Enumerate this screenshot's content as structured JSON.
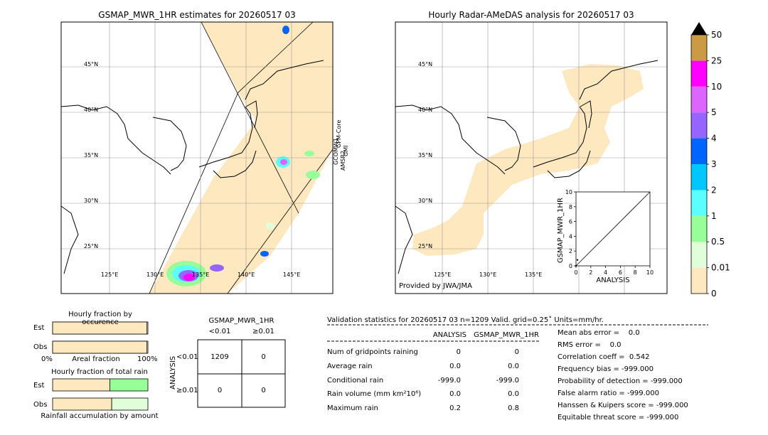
{
  "left_map": {
    "title": "GSMAP_MWR_1HR estimates for 20260517 03",
    "lat_labels": [
      "45°N",
      "40°N",
      "35°N",
      "30°N",
      "25°N"
    ],
    "lon_labels": [
      "125°E",
      "130°E",
      "135°E",
      "140°E",
      "145°E"
    ],
    "swath_labels": [
      "GCOMW1",
      "AMSR2",
      "GPM-Core",
      "GMI"
    ]
  },
  "right_map": {
    "title": "Hourly Radar-AMeDAS analysis for 20260517 03",
    "lat_labels": [
      "45°N",
      "40°N",
      "35°N",
      "30°N",
      "25°N"
    ],
    "lon_labels": [
      "125°E",
      "130°E",
      "135°E"
    ],
    "credit": "Provided by JWA/JMA"
  },
  "colorbar": {
    "levels": [
      "0",
      "0.01",
      "0.5",
      "1",
      "2",
      "3",
      "4",
      "5",
      "10",
      "25",
      "50"
    ],
    "colors": [
      "#fee8c0",
      "#e0fed8",
      "#98fe98",
      "#5afeff",
      "#00c8ff",
      "#0064ff",
      "#9664ff",
      "#dc64ff",
      "#ff00ff",
      "#cc9944"
    ],
    "extend_color": "#000000"
  },
  "chart_data": [
    {
      "type": "scatter",
      "title": "",
      "xlabel": "ANALYSIS",
      "ylabel": "GSMAP_MWR_1HR",
      "xlim": [
        0,
        10
      ],
      "ylim": [
        0,
        10
      ],
      "xticks": [
        "0",
        "2",
        "4",
        "6",
        "8",
        "10"
      ],
      "yticks": [
        "0",
        "2",
        "4",
        "6",
        "8",
        "10"
      ],
      "reference_line": [
        [
          0,
          0
        ],
        [
          10,
          10
        ]
      ],
      "points": [
        [
          0,
          0
        ],
        [
          0.2,
          0.8
        ]
      ]
    },
    {
      "type": "bar",
      "title": "Hourly fraction by occurence",
      "categories": [
        "Est",
        "Obs"
      ],
      "values": [
        0.99,
        0.99
      ],
      "xlabel": "Areal fraction",
      "xticks": [
        "0%",
        "100%"
      ]
    },
    {
      "type": "bar",
      "title": "Hourly fraction of total rain",
      "categories": [
        "Est",
        "Obs"
      ],
      "series": [
        {
          "values": [
            0.6,
            0.62
          ]
        },
        {
          "values": [
            0.4,
            0.38
          ]
        }
      ],
      "xlabel": "Rainfall accumulation by amount"
    }
  ],
  "contingency": {
    "title": "GSMAP_MWR_1HR",
    "col_labels": [
      "<0.01",
      "≥0.01"
    ],
    "row_axis": "ANALYSIS",
    "row_labels": [
      "<0.01",
      "≥0.01"
    ],
    "cells": [
      [
        "1209",
        "0"
      ],
      [
        "0",
        "0"
      ]
    ]
  },
  "validation": {
    "header": "Validation statistics for 20260517 03  n=1209 Valid. grid=0.25˚ Units=mm/hr.",
    "col_analysis": "ANALYSIS",
    "col_gsmap": "GSMAP_MWR_1HR",
    "rows": [
      {
        "label": "Num of gridpoints raining",
        "analysis": "0",
        "gsmap": "0"
      },
      {
        "label": "Average rain",
        "analysis": "0.0",
        "gsmap": "0.0"
      },
      {
        "label": "Conditional rain",
        "analysis": "-999.0",
        "gsmap": "-999.0"
      },
      {
        "label": "Rain volume (mm km²10⁶)",
        "analysis": "0.0",
        "gsmap": "0.0"
      },
      {
        "label": "Maximum rain",
        "analysis": "0.2",
        "gsmap": "0.8"
      }
    ],
    "scores": [
      "Mean abs error =    0.0",
      "RMS error =    0.0",
      "Correlation coeff =  0.542",
      "Frequency bias = -999.000",
      "Probability of detection = -999.000",
      "False alarm ratio = -999.000",
      "Hanssen & Kuipers score = -999.000",
      "Equitable threat score = -999.000"
    ]
  }
}
